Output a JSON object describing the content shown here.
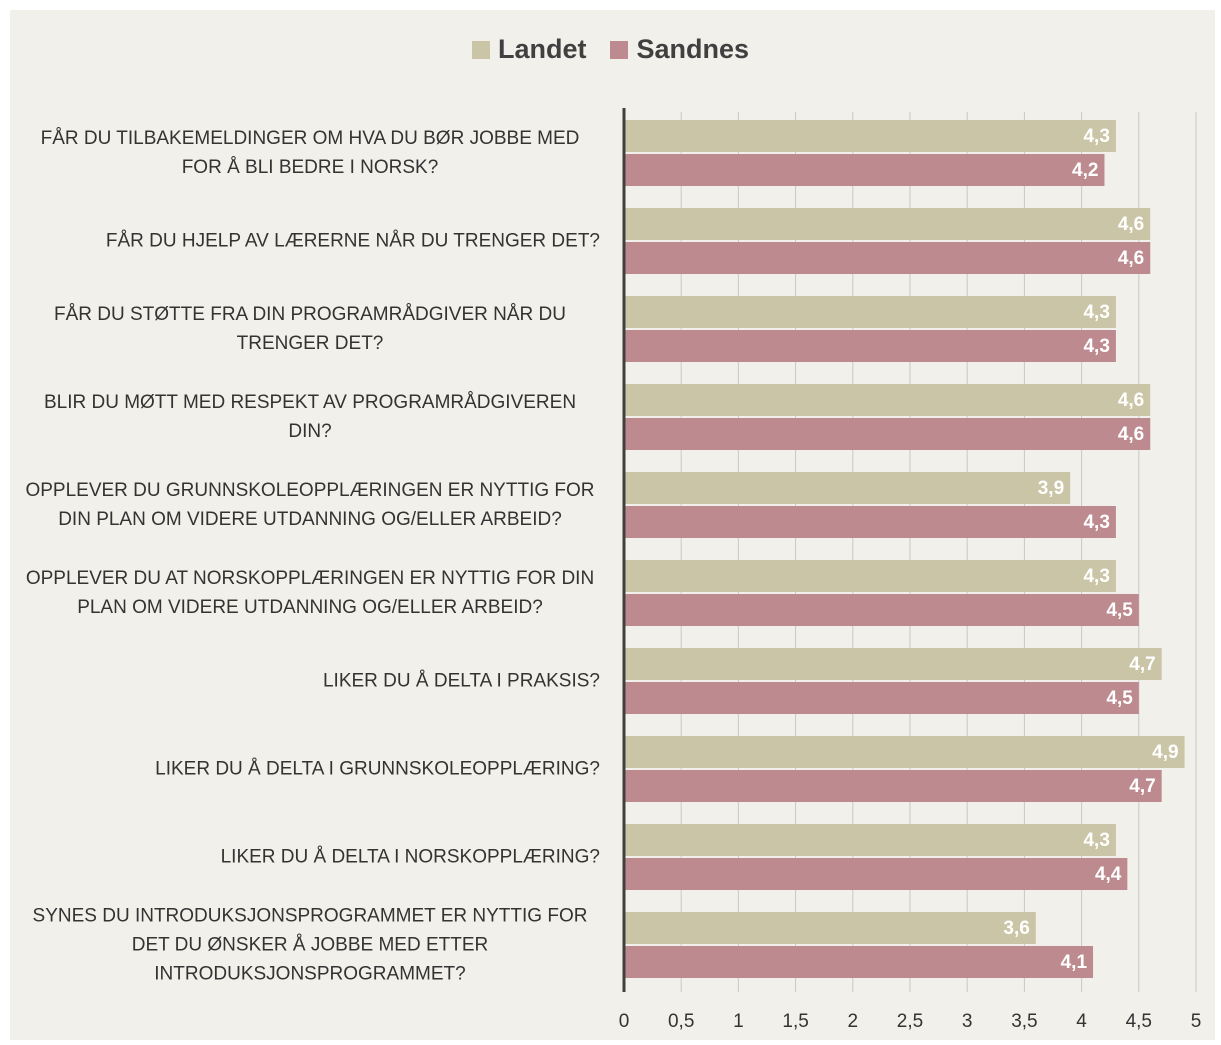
{
  "chart_data": {
    "type": "bar",
    "orientation": "horizontal",
    "categories": [
      "FÅR DU TILBAKEMELDINGER OM HVA DU BØR JOBBE MED FOR Å BLI BEDRE I NORSK?",
      "FÅR DU HJELP AV LÆRERNE NÅR DU TRENGER DET?",
      "FÅR DU STØTTE FRA DIN PROGRAMRÅDGIVER NÅR DU TRENGER DET?",
      "BLIR DU MØTT MED RESPEKT AV PROGRAMRÅDGIVEREN DIN?",
      "OPPLEVER DU GRUNNSKOLEOPPLÆRINGEN ER NYTTIG FOR DIN PLAN OM VIDERE UTDANNING OG/ELLER ARBEID?",
      "OPPLEVER DU AT NORSKOPPLÆRINGEN ER NYTTIG FOR DIN PLAN OM VIDERE UTDANNING OG/ELLER ARBEID?",
      "LIKER DU Å DELTA I PRAKSIS?",
      "LIKER DU Å DELTA I GRUNNSKOLEOPPLÆRING?",
      "LIKER DU Å DELTA I NORSKOPPLÆRING?",
      "SYNES DU INTRODUKSJONSPROGRAMMET ER NYTTIG FOR DET DU ØNSKER Å JOBBE MED ETTER INTRODUKSJONSPROGRAMMET?"
    ],
    "series": [
      {
        "name": "Landet",
        "color": "#cbc5a7",
        "values": [
          4.3,
          4.6,
          4.3,
          4.6,
          3.9,
          4.3,
          4.7,
          4.9,
          4.3,
          3.6
        ],
        "value_labels": [
          "4,3",
          "4,6",
          "4,3",
          "4,6",
          "3,9",
          "4,3",
          "4,7",
          "4,9",
          "4,3",
          "3,6"
        ]
      },
      {
        "name": "Sandnes",
        "color": "#bd8b8f",
        "values": [
          4.2,
          4.6,
          4.3,
          4.6,
          4.3,
          4.5,
          4.5,
          4.7,
          4.4,
          4.1
        ],
        "value_labels": [
          "4,2",
          "4,6",
          "4,3",
          "4,6",
          "4,3",
          "4,5",
          "4,5",
          "4,7",
          "4,4",
          "4,1"
        ]
      }
    ],
    "xlim": [
      0,
      5
    ],
    "xticks": [
      0,
      {
        "value": 0.5,
        "label": "0,5"
      },
      1,
      {
        "value": 1.5,
        "label": "1,5"
      },
      2,
      {
        "value": 2.5,
        "label": "2,5"
      },
      3,
      {
        "value": 3.5,
        "label": "3,5"
      },
      4,
      {
        "value": 4.5,
        "label": "4,5"
      },
      5
    ],
    "grid": true,
    "legend": "top"
  }
}
